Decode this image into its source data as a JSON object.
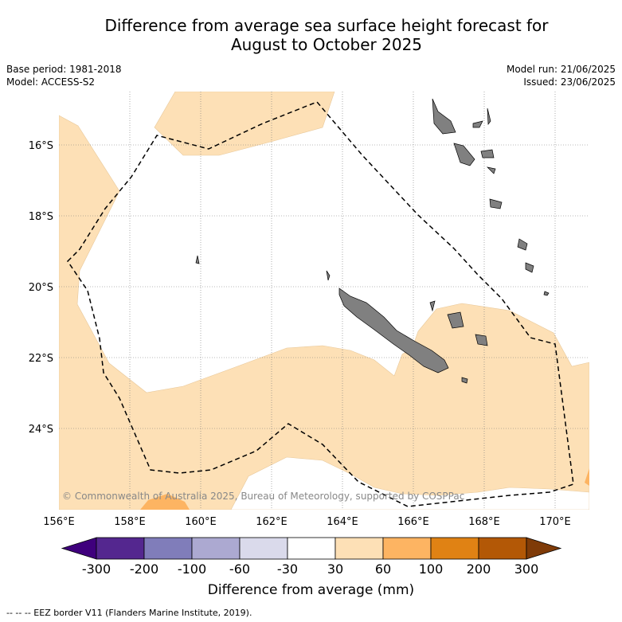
{
  "title_line1": "Difference from average sea surface height forecast for",
  "title_line2": "August to October 2025",
  "base_period": "Base period: 1981-2018",
  "model": "Model: ACCESS-S2",
  "model_run": "Model run: 21/06/2025",
  "issued": "Issued: 23/06/2025",
  "copyright": "© Commonwealth of Australia 2025, Bureau of Meteorology, supported by COSPPac",
  "lat_labels": [
    "16°S",
    "18°S",
    "20°S",
    "22°S",
    "24°S"
  ],
  "lon_labels": [
    "156°E",
    "158°E",
    "160°E",
    "162°E",
    "164°E",
    "166°E",
    "168°E",
    "170°E"
  ],
  "colorbar": {
    "title": "Difference from average (mm)",
    "tick_labels": [
      "-300",
      "-200",
      "-100",
      "-60",
      "-30",
      "30",
      "60",
      "100",
      "200",
      "300"
    ],
    "colors": [
      "#3f007d",
      "#54278f",
      "#807dba",
      "#aca9d1",
      "#dadaeb",
      "#ffffff",
      "#fde0b6",
      "#fdb462",
      "#e08214",
      "#b35806",
      "#7f3b08"
    ]
  },
  "legend_note": "--  --  -- EEZ border V11 (Flanders Marine Institute, 2019).",
  "colors": {
    "land": "#808080",
    "fill_30_60": "#fde0b6",
    "fill_60_100": "#fdb462"
  }
}
